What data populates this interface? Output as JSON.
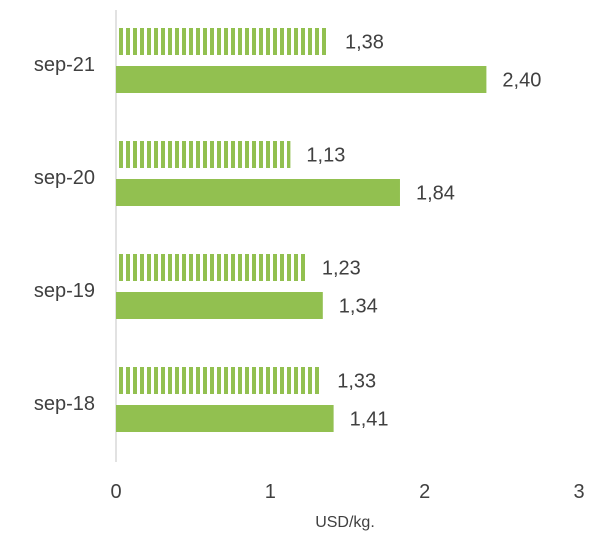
{
  "chart_data": {
    "type": "bar",
    "orientation": "horizontal",
    "categories": [
      "sep-21",
      "sep-20",
      "sep-19",
      "sep-18"
    ],
    "series": [
      {
        "values": [
          1.38,
          1.13,
          1.23,
          1.33
        ],
        "labels": [
          "1,38",
          "1,13",
          "1,23",
          "1,33"
        ],
        "color": "#92c050",
        "pattern": "vertical-stripes"
      },
      {
        "values": [
          2.4,
          1.84,
          1.34,
          1.41
        ],
        "labels": [
          "2,40",
          "1,84",
          "1,34",
          "1,41"
        ],
        "color": "#92c050",
        "pattern": "solid"
      }
    ],
    "xlabel": "USD/kg.",
    "xlim": [
      0,
      3
    ],
    "xticks": [
      "0",
      "1",
      "2",
      "3"
    ],
    "grid": false
  }
}
